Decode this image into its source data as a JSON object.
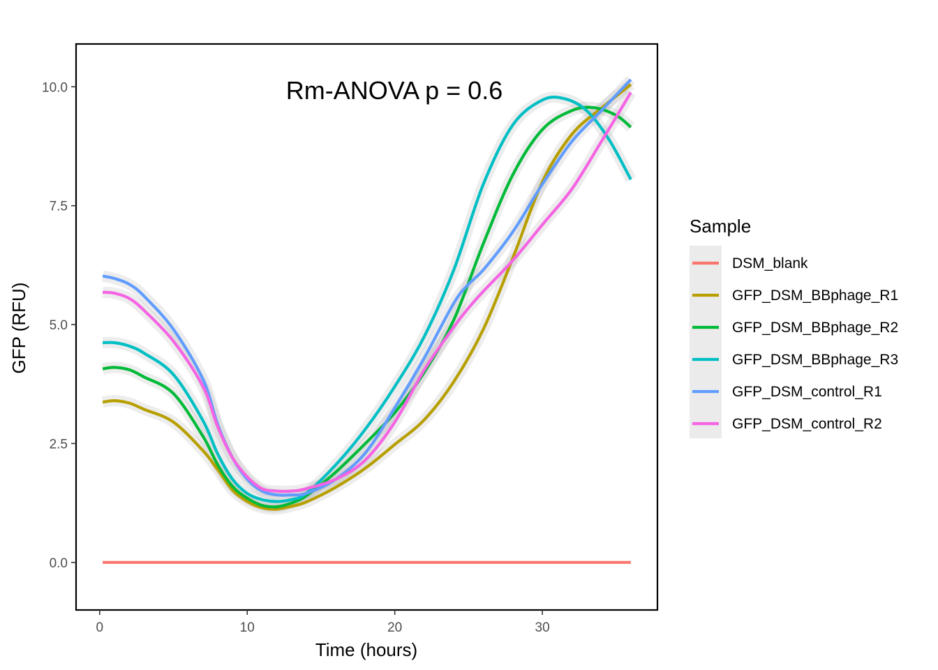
{
  "chart_data": {
    "type": "line",
    "xlabel": "Time (hours)",
    "ylabel": "GFP (RFU)",
    "xlim": [
      -1.6,
      37.8
    ],
    "ylim": [
      -1.0,
      10.9
    ],
    "x_ticks": [
      0,
      10,
      20,
      30
    ],
    "x_tick_labels": [
      "0",
      "10",
      "20",
      "30"
    ],
    "y_ticks": [
      0,
      2.5,
      5,
      7.5,
      10
    ],
    "y_tick_labels": [
      "0.0",
      "2.5",
      "5.0",
      "7.5",
      "10.0"
    ],
    "grid": false,
    "annotation": "Rm-ANOVA p = 0.6",
    "legend": {
      "title": "Sample",
      "position": "right"
    },
    "series": [
      {
        "name": "DSM_blank",
        "color": "#F8766D",
        "x": [
          0.2,
          36
        ],
        "y": [
          0.0,
          0.0
        ]
      },
      {
        "name": "GFP_DSM_BBphage_R1",
        "color": "#B79F00",
        "x": [
          0.2,
          1,
          2,
          3,
          5,
          7,
          8,
          9,
          10,
          11,
          12,
          13,
          14,
          16,
          18,
          20,
          22,
          24,
          26,
          28,
          30,
          32,
          34,
          36
        ],
        "y": [
          3.37,
          3.4,
          3.35,
          3.22,
          2.95,
          2.35,
          1.95,
          1.52,
          1.28,
          1.15,
          1.12,
          1.18,
          1.27,
          1.58,
          1.98,
          2.48,
          3.0,
          3.8,
          4.9,
          6.4,
          8.0,
          9.0,
          9.55,
          10.05
        ]
      },
      {
        "name": "GFP_DSM_BBphage_R2",
        "color": "#00BA38",
        "x": [
          0.2,
          1,
          2,
          3,
          5,
          7,
          8,
          9,
          10,
          11,
          12,
          13,
          14,
          16,
          18,
          20,
          22,
          24,
          26,
          28,
          30,
          32,
          33.5,
          35,
          36
        ],
        "y": [
          4.07,
          4.1,
          4.05,
          3.9,
          3.55,
          2.65,
          2.05,
          1.6,
          1.35,
          1.2,
          1.17,
          1.25,
          1.4,
          1.9,
          2.5,
          3.15,
          4.0,
          5.1,
          6.7,
          8.15,
          9.1,
          9.5,
          9.56,
          9.4,
          9.15
        ]
      },
      {
        "name": "GFP_DSM_BBphage_R3",
        "color": "#00BFC4",
        "x": [
          0.2,
          1,
          2,
          3,
          5,
          7,
          8,
          9,
          10,
          11,
          12,
          13,
          14,
          16,
          18,
          20,
          22,
          24,
          26,
          28,
          30,
          31.5,
          33,
          34.5,
          36
        ],
        "y": [
          4.62,
          4.62,
          4.55,
          4.4,
          3.95,
          2.98,
          2.28,
          1.75,
          1.45,
          1.32,
          1.28,
          1.32,
          1.45,
          2.05,
          2.8,
          3.7,
          4.75,
          6.15,
          7.95,
          9.2,
          9.72,
          9.75,
          9.5,
          8.9,
          8.05
        ]
      },
      {
        "name": "GFP_DSM_control_R1",
        "color": "#619CFF",
        "x": [
          0.2,
          1,
          2,
          3,
          5,
          7,
          8,
          9,
          10,
          11,
          12,
          13,
          14,
          16,
          18,
          20,
          22,
          24,
          25,
          26,
          28,
          30,
          32,
          34,
          36
        ],
        "y": [
          6.02,
          5.97,
          5.85,
          5.6,
          4.9,
          3.85,
          2.9,
          2.2,
          1.75,
          1.5,
          1.42,
          1.42,
          1.45,
          1.75,
          2.3,
          3.25,
          4.3,
          5.45,
          5.85,
          6.15,
          6.95,
          7.95,
          8.85,
          9.5,
          10.15
        ]
      },
      {
        "name": "GFP_DSM_control_R2",
        "color": "#F564E3",
        "x": [
          0.2,
          1,
          2,
          3,
          5,
          7,
          8,
          9,
          10,
          11,
          12,
          13,
          14,
          16,
          18,
          20,
          22,
          24,
          25,
          26,
          28,
          30,
          32,
          34,
          36
        ],
        "y": [
          5.68,
          5.66,
          5.55,
          5.3,
          4.65,
          3.7,
          2.85,
          2.2,
          1.8,
          1.55,
          1.5,
          1.5,
          1.55,
          1.75,
          2.15,
          2.95,
          4.05,
          4.95,
          5.35,
          5.7,
          6.35,
          7.1,
          7.85,
          8.85,
          9.88
        ]
      }
    ]
  }
}
